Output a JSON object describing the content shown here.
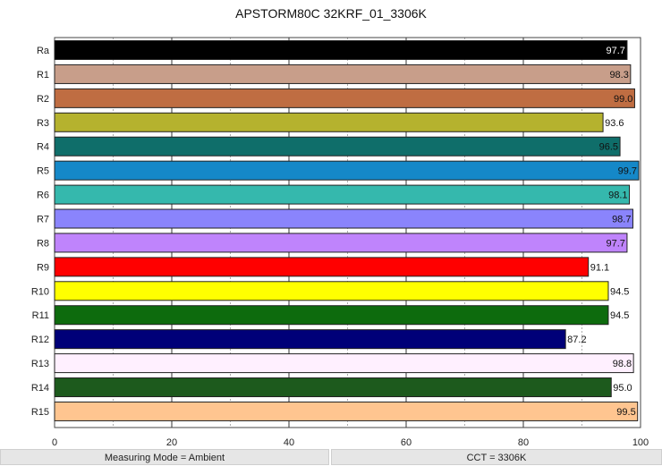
{
  "chart_data": {
    "type": "bar",
    "orientation": "horizontal",
    "title": "APSTORM80C 32KRF_01_3306K",
    "categories": [
      "Ra",
      "R1",
      "R2",
      "R3",
      "R4",
      "R5",
      "R6",
      "R7",
      "R8",
      "R9",
      "R10",
      "R11",
      "R12",
      "R13",
      "R14",
      "R15"
    ],
    "values": [
      97.7,
      98.3,
      99.0,
      93.6,
      96.5,
      99.7,
      98.1,
      98.7,
      97.7,
      91.1,
      94.5,
      94.5,
      87.2,
      98.8,
      95.0,
      99.5
    ],
    "labels": [
      "97.7",
      "98.3",
      "99.0",
      "93.6",
      "96.5",
      "99.7",
      "98.1",
      "98.7",
      "97.7",
      "91.1",
      "94.5",
      "94.5",
      "87.2",
      "98.8",
      "95.0",
      "99.5"
    ],
    "colors": [
      "#000000",
      "#c89e8a",
      "#bf6d42",
      "#b5b22e",
      "#0f6e6a",
      "#1588c8",
      "#35b8ad",
      "#8a84fc",
      "#bf84fc",
      "#ff0000",
      "#ffff00",
      "#0d6b0d",
      "#000078",
      "#fff0ff",
      "#1d5a1d",
      "#ffc590"
    ],
    "xlim": [
      0,
      100
    ],
    "xticks": [
      "0",
      "20",
      "40",
      "60",
      "80",
      "100"
    ],
    "grid": true
  },
  "footer": {
    "mode": "Measuring Mode = Ambient",
    "cct": "CCT = 3306K"
  }
}
